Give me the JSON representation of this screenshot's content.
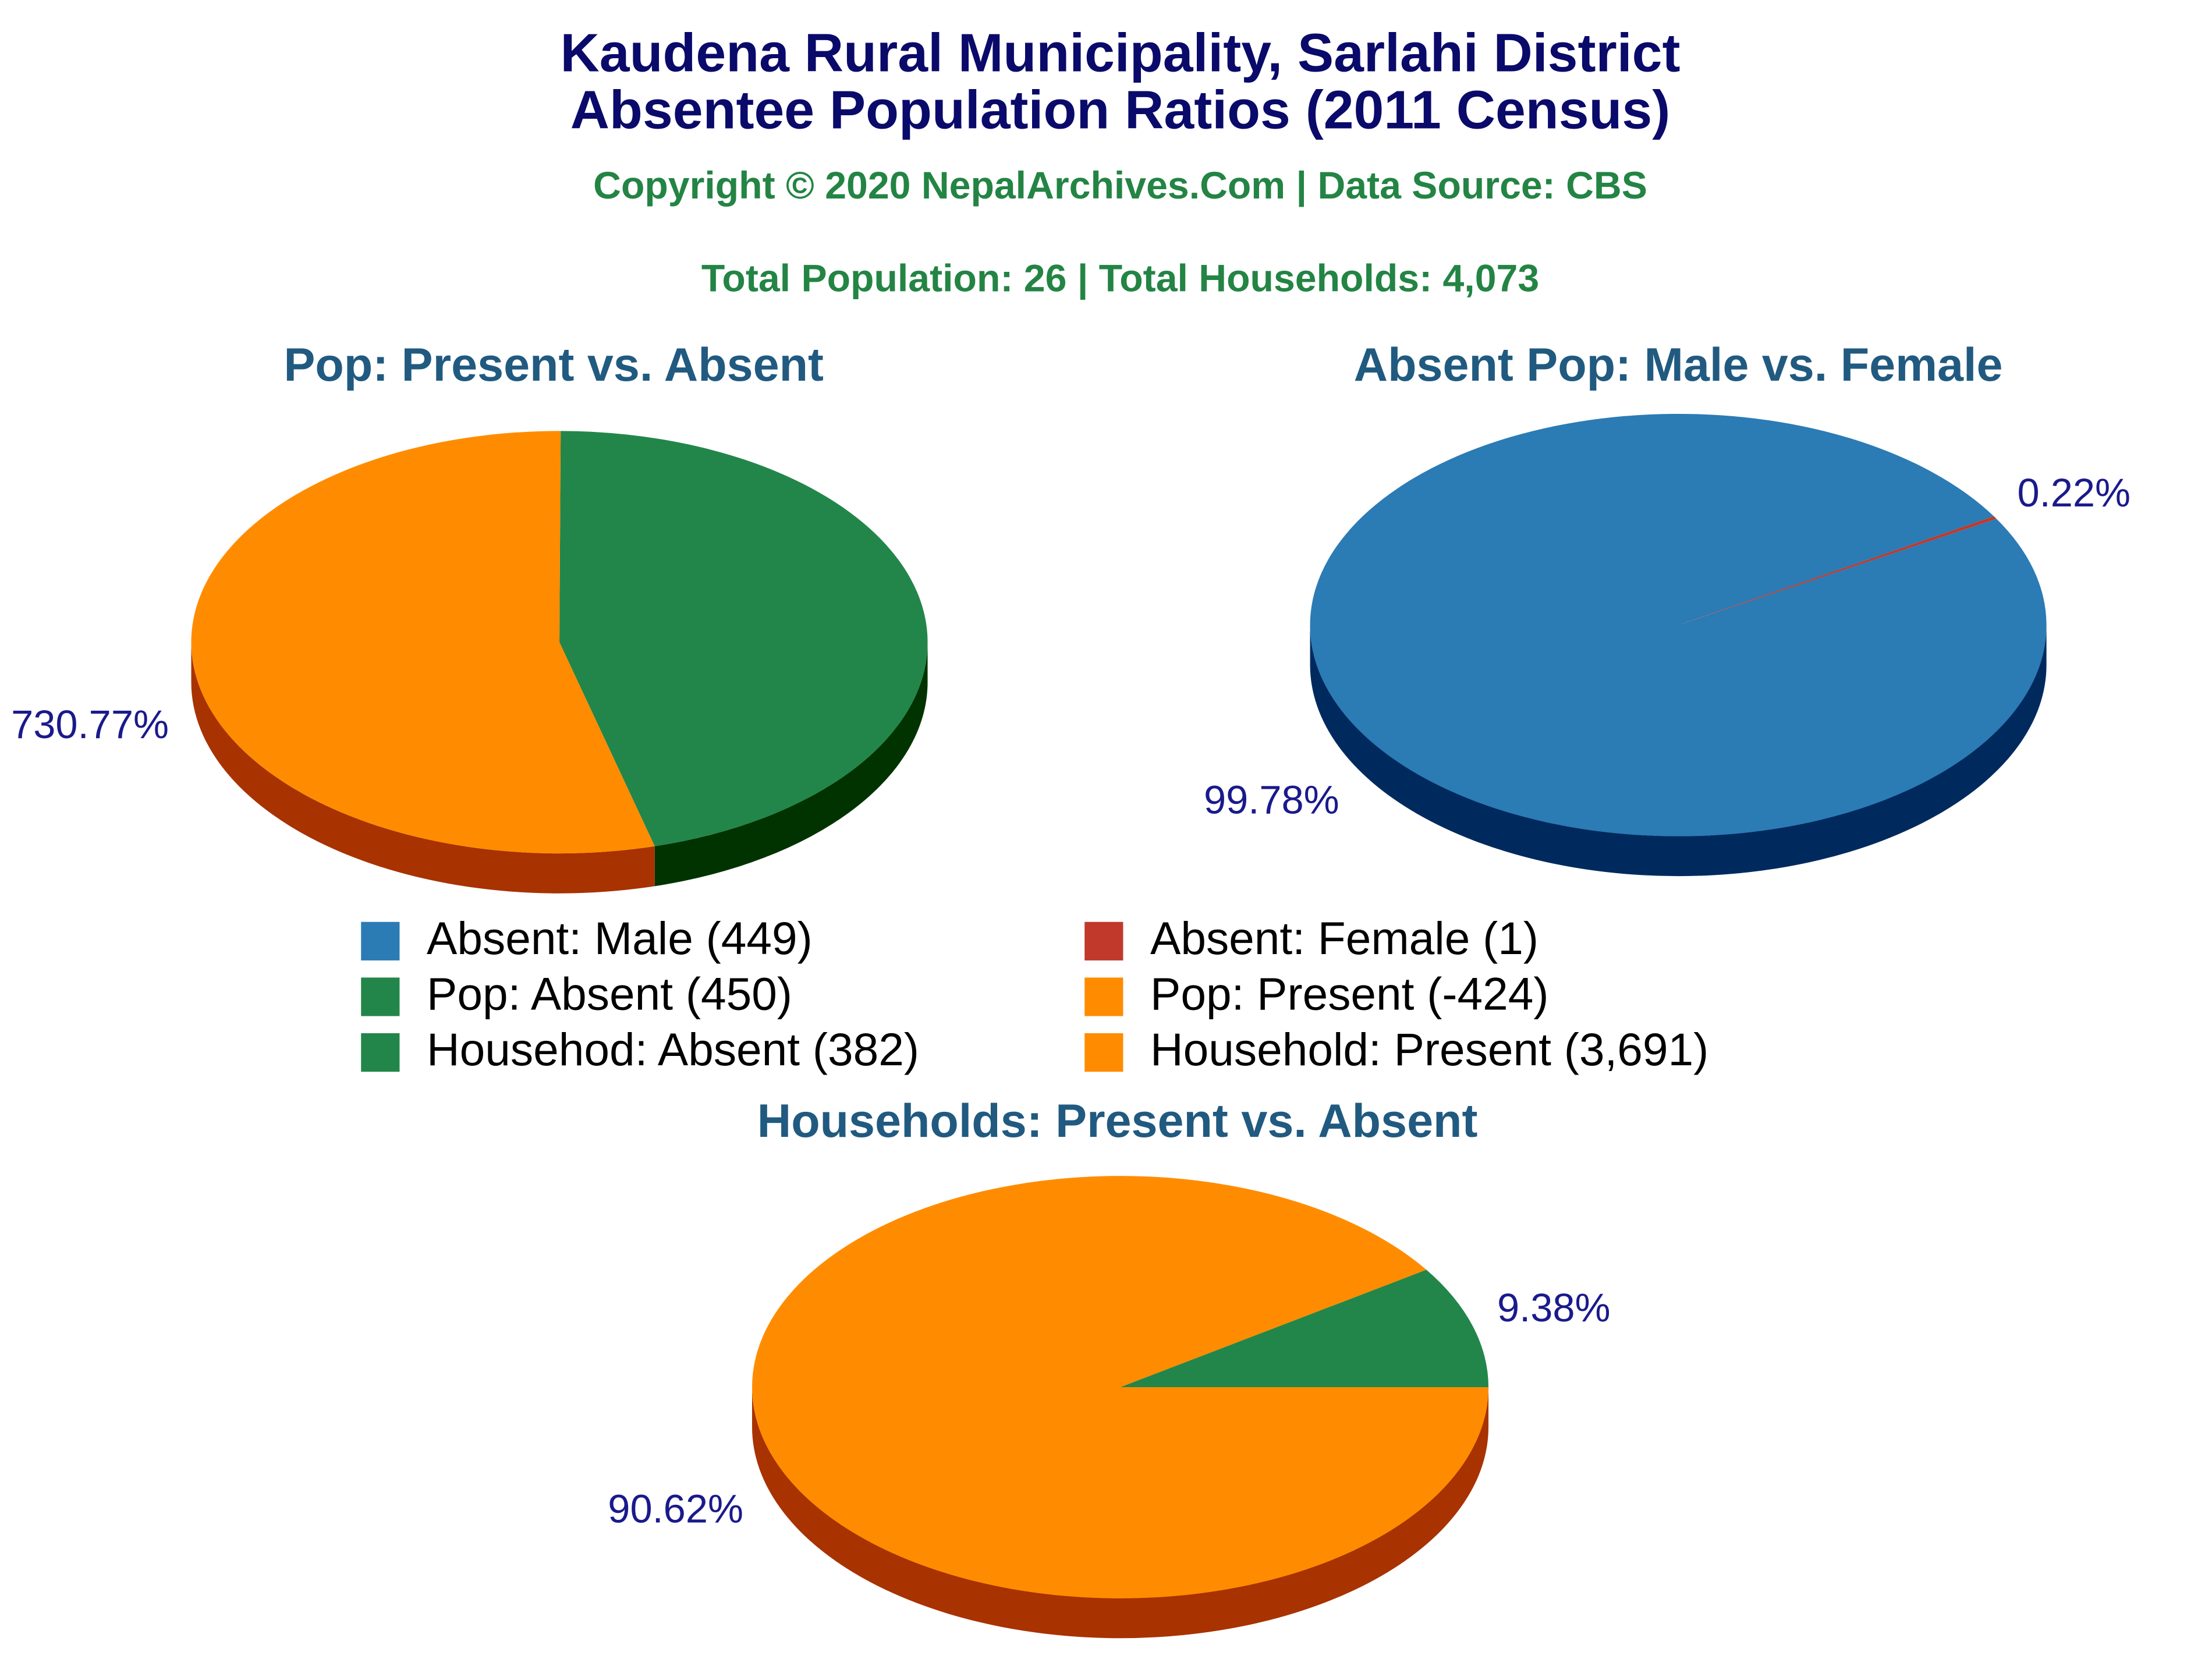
{
  "title": [
    "Kaudena Rural Municipality, Sarlahi District",
    "Absentee Population Ratios (2011 Census)"
  ],
  "copyright": "Copyright © 2020 NepalArchives.Com | Data Source: CBS",
  "totals": "Total Population: 26 | Total Households: 4,073",
  "legend": [
    {
      "label": "Absent: Male (449)",
      "color": "#2b7bb5"
    },
    {
      "label": "Absent: Female (1)",
      "color": "#c0392b"
    },
    {
      "label": "Pop: Absent (450)",
      "color": "#22864a"
    },
    {
      "label": "Pop: Present (-424)",
      "color": "#ff8c00"
    },
    {
      "label": "Househod: Absent (382)",
      "color": "#22864a"
    },
    {
      "label": "Household: Present (3,691)",
      "color": "#ff8c00"
    }
  ],
  "chart_data": [
    {
      "type": "pie",
      "title": "Pop: Present vs. Absent",
      "categories": [
        "Pop: Absent",
        "Pop: Present"
      ],
      "values": [
        617,
        730.77
      ],
      "value_labels": [
        null,
        "730.77%"
      ],
      "colors": [
        "#22864a",
        "#ff8c00"
      ]
    },
    {
      "type": "pie",
      "title": "Absent Pop: Male vs. Female",
      "categories": [
        "Absent: Male",
        "Absent: Female"
      ],
      "values": [
        99.78,
        0.22
      ],
      "value_labels": [
        "99.78%",
        "0.22%"
      ],
      "colors": [
        "#2b7bb5",
        "#c0392b"
      ]
    },
    {
      "type": "pie",
      "title": "Households: Present vs. Absent",
      "categories": [
        "Househod: Absent",
        "Household: Present"
      ],
      "values": [
        9.38,
        90.62
      ],
      "value_labels": [
        "9.38%",
        "90.62%"
      ],
      "colors": [
        "#22864a",
        "#ff8c00"
      ]
    }
  ]
}
